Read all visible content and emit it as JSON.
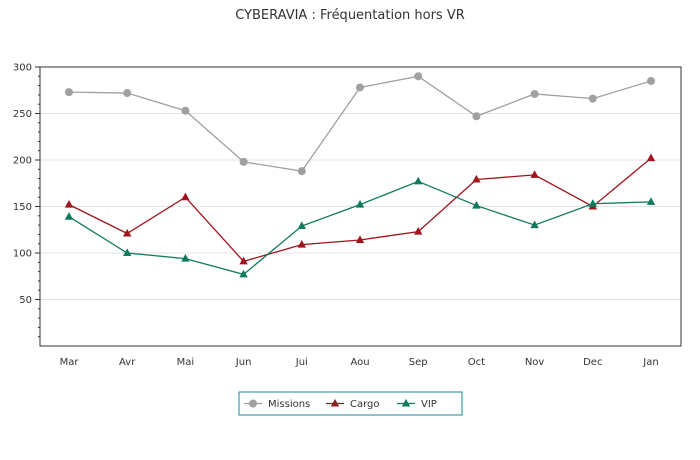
{
  "chart_data": {
    "type": "line",
    "title": "CYBERAVIA : Fréquentation hors VR",
    "xlabel": "",
    "ylabel": "",
    "categories": [
      "Mar",
      "Avr",
      "Mai",
      "Jun",
      "Jui",
      "Aou",
      "Sep",
      "Oct",
      "Nov",
      "Dec",
      "Jan"
    ],
    "ylim": [
      0,
      300
    ],
    "yticks": [
      50,
      100,
      150,
      200,
      250,
      300
    ],
    "grid": true,
    "legend_position": "bottom",
    "series": [
      {
        "name": "Missions",
        "color": "#a0a0a0",
        "marker": "circle",
        "values": [
          273,
          272,
          253,
          198,
          188,
          278,
          290,
          247,
          271,
          266,
          285
        ]
      },
      {
        "name": "Cargo",
        "color": "#a0141e",
        "marker": "triangle",
        "values": [
          152,
          121,
          160,
          91,
          109,
          114,
          123,
          179,
          184,
          150,
          202
        ]
      },
      {
        "name": "VIP",
        "color": "#0e7a5e",
        "marker": "triangle",
        "values": [
          139,
          100,
          94,
          77,
          129,
          152,
          177,
          151,
          130,
          153,
          155
        ]
      }
    ]
  }
}
